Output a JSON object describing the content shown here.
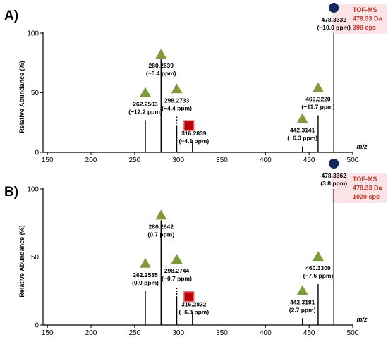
{
  "colors": {
    "triangle": "#7f9a3a",
    "circle": "#14285f",
    "square": "#c00000",
    "square_border": "#e07a7a",
    "info_text": "#c0392b",
    "info_bg": "#fbe3e6"
  },
  "chart_data": [
    {
      "type": "bar",
      "panel_label": "A)",
      "xlabel": "m/z",
      "ylabel": "Relative Abundance (%)",
      "xlim": [
        145,
        500
      ],
      "ylim": [
        0,
        100
      ],
      "x_ticks": [
        "150",
        "200",
        "250",
        "300",
        "350",
        "400",
        "450",
        "500"
      ],
      "y_ticks": [
        "0",
        "50",
        "100"
      ],
      "info_box": [
        "TOF-MS",
        "478.33 Da",
        "399 cps"
      ],
      "peaks": [
        {
          "mz": 262.2503,
          "intensity": 27,
          "label": "262.2503",
          "ppm": "(−12.2 ppm)",
          "marker": "triangle",
          "dashed": false
        },
        {
          "mz": 280.2639,
          "intensity": 78,
          "label": "280.2639",
          "ppm": "(−0.4 ppm)",
          "marker": "triangle",
          "dashed": false
        },
        {
          "mz": 298.2733,
          "intensity": 30,
          "label": "298.2733",
          "ppm": "(−4.4 ppm)",
          "marker": "triangle",
          "dashed": true
        },
        {
          "mz": 316.2839,
          "intensity": 10,
          "label": "316.2839",
          "ppm": "(−4.1 ppm)",
          "marker": "square",
          "dashed": false
        },
        {
          "mz": 442.3141,
          "intensity": 5,
          "label": "442.3141",
          "ppm": "(−6.3 ppm)",
          "marker": "triangle",
          "dashed": false
        },
        {
          "mz": 460.322,
          "intensity": 31,
          "label": "460.3220",
          "ppm": "(−11.7 ppm)",
          "marker": "triangle",
          "dashed": false
        },
        {
          "mz": 478.3332,
          "intensity": 100,
          "label": "478.3332",
          "ppm": "(−10.0 ppm)",
          "marker": "circle",
          "dashed": false
        }
      ]
    },
    {
      "type": "bar",
      "panel_label": "B)",
      "xlabel": "m/z",
      "ylabel": "Relative Abundance (%)",
      "xlim": [
        145,
        500
      ],
      "ylim": [
        0,
        100
      ],
      "x_ticks": [
        "150",
        "200",
        "250",
        "300",
        "350",
        "400",
        "450",
        "500"
      ],
      "y_ticks": [
        "0",
        "50",
        "100"
      ],
      "info_box": [
        "TOF-MS",
        "478.33 Da",
        "1020 cps"
      ],
      "peaks": [
        {
          "mz": 262.2535,
          "intensity": 25,
          "label": "262.2535",
          "ppm": "(0.0 ppm)",
          "marker": "triangle",
          "dashed": false
        },
        {
          "mz": 280.2642,
          "intensity": 77,
          "label": "280.2642",
          "ppm": "(0.7 ppm)",
          "marker": "triangle",
          "dashed": false
        },
        {
          "mz": 298.2744,
          "intensity": 28,
          "label": "298.2744",
          "ppm": "(−0.7 ppm)",
          "marker": "triangle",
          "dashed": true
        },
        {
          "mz": 316.2832,
          "intensity": 10,
          "label": "316.2832",
          "ppm": "(−6.3 ppm)",
          "marker": "square",
          "dashed": false
        },
        {
          "mz": 442.3181,
          "intensity": 5,
          "label": "442.3181",
          "ppm": "(2.7 ppm)",
          "marker": "triangle",
          "dashed": false
        },
        {
          "mz": 460.3309,
          "intensity": 30,
          "label": "460.3309",
          "ppm": "(−7.6 ppm)",
          "marker": "triangle",
          "dashed": false
        },
        {
          "mz": 478.3362,
          "intensity": 100,
          "label": "478.3362",
          "ppm": "(3.8 ppm)",
          "marker": "circle",
          "dashed": false
        }
      ]
    }
  ]
}
